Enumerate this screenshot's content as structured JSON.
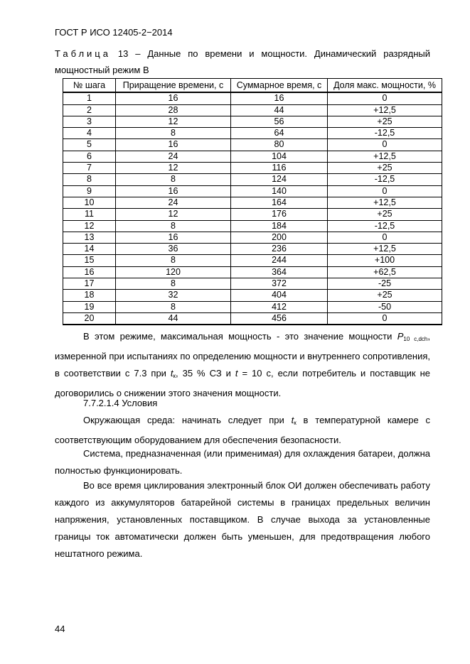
{
  "header": "ГОСТ Р ИСО 12405-2−2014",
  "caption": {
    "label": "Таблица",
    "text": " 13 – Данные по времени и мощности. Динамический разрядный мощностный режим В"
  },
  "table": {
    "headers": [
      "№ шага",
      "Приращение времени, с",
      "Суммарное время, с",
      "Доля макс. мощности, %"
    ],
    "rows": [
      [
        "1",
        "16",
        "16",
        "0"
      ],
      [
        "2",
        "28",
        "44",
        "+12,5"
      ],
      [
        "3",
        "12",
        "56",
        "+25"
      ],
      [
        "4",
        "8",
        "64",
        "-12,5"
      ],
      [
        "5",
        "16",
        "80",
        "0"
      ],
      [
        "6",
        "24",
        "104",
        "+12,5"
      ],
      [
        "7",
        "12",
        "116",
        "+25"
      ],
      [
        "8",
        "8",
        "124",
        "-12,5"
      ],
      [
        "9",
        "16",
        "140",
        "0"
      ],
      [
        "10",
        "24",
        "164",
        "+12,5"
      ],
      [
        "11",
        "12",
        "176",
        "+25"
      ],
      [
        "12",
        "8",
        "184",
        "-12,5"
      ],
      [
        "13",
        "16",
        "200",
        "0"
      ],
      [
        "14",
        "36",
        "236",
        "+12,5"
      ],
      [
        "15",
        "8",
        "244",
        "+100"
      ],
      [
        "16",
        "120",
        "364",
        "+62,5"
      ],
      [
        "17",
        "8",
        "372",
        "-25"
      ],
      [
        "18",
        "32",
        "404",
        "+25"
      ],
      [
        "19",
        "8",
        "412",
        "-50"
      ],
      [
        "20",
        "44",
        "456",
        "0"
      ]
    ]
  },
  "p1": {
    "a": "В этом режиме, максимальная мощность - это значение мощности ",
    "sym": "P",
    "sub": "10 с,dch",
    "b": ", измеренной при испытаниях по определению мощности и внутреннего сопротивления, в соответствии с 7.3 при ",
    "t": "t",
    "tsub": "к",
    "c": ", 35 % СЗ и ",
    "t2": "t",
    "d": " = 10 с, если потребитель и поставщик не договорились о снижении этого значения мощности."
  },
  "section": "7.7.2.1.4  Условия",
  "p2": {
    "a": "Окружающая среда: начинать следует при ",
    "t": "t",
    "tsub": "к",
    "b": " в температурной камере с соответствующим оборудованием для обеспечения безопасности."
  },
  "p3": "Система, предназначенная (или применимая) для охлаждения батареи, должна полностью функционировать.",
  "p4": "Во все время циклирования электронный блок ОИ должен обеспечивать работу каждого из аккумуляторов батарейной системы в границах предельных величин напряжения, установленных поставщиком. В случае выхода за установленные границы ток автоматически должен быть уменьшен, для предотвращения любого нештатного режима.",
  "page_number": "44"
}
